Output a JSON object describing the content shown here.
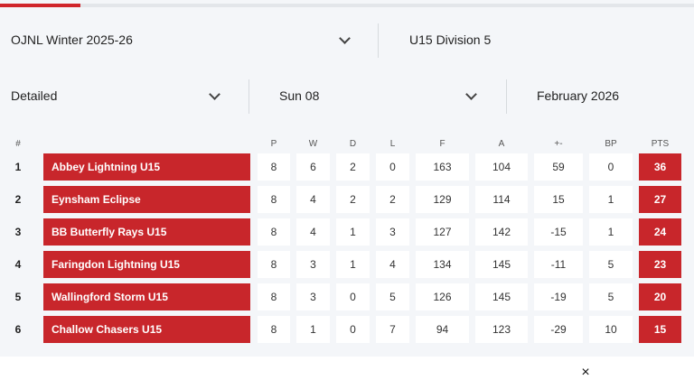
{
  "progress_fraction": 0.116,
  "filters": {
    "competition": "OJNL Winter 2025-26",
    "division": "U15 Division 5",
    "view": "Detailed",
    "day": "Sun 08",
    "month": "February 2026"
  },
  "columns": {
    "pos": "#",
    "p": "P",
    "w": "W",
    "d": "D",
    "l": "L",
    "f": "F",
    "a": "A",
    "diff": "+-",
    "bp": "BP",
    "pts": "PTS"
  },
  "rows": [
    {
      "pos": "1",
      "team": "Abbey Lightning U15",
      "p": "8",
      "w": "6",
      "d": "2",
      "l": "0",
      "f": "163",
      "a": "104",
      "diff": "59",
      "bp": "0",
      "pts": "36"
    },
    {
      "pos": "2",
      "team": "Eynsham Eclipse",
      "p": "8",
      "w": "4",
      "d": "2",
      "l": "2",
      "f": "129",
      "a": "114",
      "diff": "15",
      "bp": "1",
      "pts": "27"
    },
    {
      "pos": "3",
      "team": "BB Butterfly Rays U15",
      "p": "8",
      "w": "4",
      "d": "1",
      "l": "3",
      "f": "127",
      "a": "142",
      "diff": "-15",
      "bp": "1",
      "pts": "24"
    },
    {
      "pos": "4",
      "team": "Faringdon Lightning U15",
      "p": "8",
      "w": "3",
      "d": "1",
      "l": "4",
      "f": "134",
      "a": "145",
      "diff": "-11",
      "bp": "5",
      "pts": "23"
    },
    {
      "pos": "5",
      "team": "Wallingford Storm U15",
      "p": "8",
      "w": "3",
      "d": "0",
      "l": "5",
      "f": "126",
      "a": "145",
      "diff": "-19",
      "bp": "5",
      "pts": "20"
    },
    {
      "pos": "6",
      "team": "Challow Chasers U15",
      "p": "8",
      "w": "1",
      "d": "0",
      "l": "7",
      "f": "94",
      "a": "123",
      "diff": "-29",
      "bp": "10",
      "pts": "15"
    }
  ],
  "close_label": "×",
  "icons": {
    "dropdown": "chevron-down-icon",
    "close": "close-icon"
  },
  "colors": {
    "accent": "#c8262b",
    "panel_bg": "#f4f6f9"
  }
}
